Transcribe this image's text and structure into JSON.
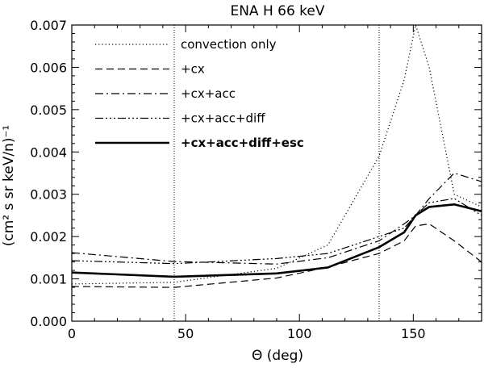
{
  "chart_data": {
    "type": "line",
    "title": "ENA H 66 keV",
    "xlabel": "Θ (deg)",
    "ylabel": "(cm² s sr keV/n)⁻¹",
    "xlim": [
      0,
      180
    ],
    "ylim": [
      0,
      0.007
    ],
    "xticks": [
      0,
      50,
      100,
      150
    ],
    "xtick_labels": [
      "0",
      "50",
      "100",
      "150"
    ],
    "yticks": [
      0,
      0.001,
      0.002,
      0.003,
      0.004,
      0.005,
      0.006,
      0.007
    ],
    "ytick_labels": [
      "0.000",
      "0.001",
      "0.002",
      "0.003",
      "0.004",
      "0.005",
      "0.006",
      "0.007"
    ],
    "grid": false,
    "legend_position": "top-left",
    "reference_lines_x": [
      45,
      135
    ],
    "series": [
      {
        "name": "convection only",
        "style": "dotted",
        "bold": false,
        "x": [
          0,
          45,
          90,
          112.5,
          135,
          146,
          151,
          157,
          168,
          180
        ],
        "y": [
          0.00088,
          0.00092,
          0.00125,
          0.0018,
          0.0039,
          0.0057,
          0.007,
          0.006,
          0.003,
          0.0027
        ]
      },
      {
        "name": "+cx",
        "style": "dashed",
        "bold": false,
        "x": [
          0,
          45,
          90,
          112.5,
          135,
          146,
          151,
          157,
          168,
          180
        ],
        "y": [
          0.00082,
          0.0008,
          0.00102,
          0.00128,
          0.0016,
          0.0019,
          0.00225,
          0.0023,
          0.0019,
          0.0014
        ]
      },
      {
        "name": "+cx+acc",
        "style": "dashdot",
        "bold": false,
        "x": [
          0,
          45,
          90,
          112.5,
          135,
          146,
          151,
          157,
          168,
          180
        ],
        "y": [
          0.00162,
          0.00141,
          0.00135,
          0.0015,
          0.0019,
          0.0023,
          0.0025,
          0.0029,
          0.0035,
          0.0033
        ]
      },
      {
        "name": "+cx+acc+diff",
        "style": "dashdotdot",
        "bold": false,
        "x": [
          0,
          45,
          90,
          112.5,
          135,
          146,
          151,
          157,
          168,
          180
        ],
        "y": [
          0.00143,
          0.00136,
          0.00148,
          0.0016,
          0.002,
          0.0022,
          0.0025,
          0.0028,
          0.0029,
          0.0025
        ]
      },
      {
        "name": "+cx+acc+diff+esc",
        "style": "solid",
        "bold": true,
        "x": [
          0,
          45,
          90,
          112.5,
          135,
          146,
          151,
          157,
          168,
          180
        ],
        "y": [
          0.00115,
          0.00105,
          0.00113,
          0.00127,
          0.00175,
          0.0021,
          0.0025,
          0.0027,
          0.00276,
          0.0026
        ]
      }
    ]
  }
}
